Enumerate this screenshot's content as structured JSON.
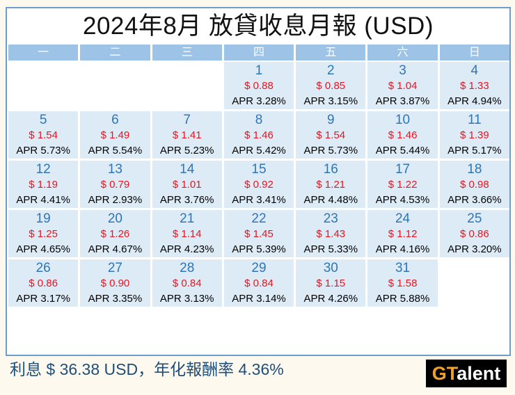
{
  "title": "2024年8月 放貸收息月報 (USD)",
  "weekdays": [
    "一",
    "二",
    "三",
    "四",
    "五",
    "六",
    "日"
  ],
  "leading_empty_cells": 3,
  "days": [
    {
      "day": "1",
      "amount": "$ 0.88",
      "apr": "APR 3.28%"
    },
    {
      "day": "2",
      "amount": "$ 0.85",
      "apr": "APR 3.15%"
    },
    {
      "day": "3",
      "amount": "$ 1.04",
      "apr": "APR 3.87%"
    },
    {
      "day": "4",
      "amount": "$ 1.33",
      "apr": "APR 4.94%"
    },
    {
      "day": "5",
      "amount": "$ 1.54",
      "apr": "APR 5.73%"
    },
    {
      "day": "6",
      "amount": "$ 1.49",
      "apr": "APR 5.54%"
    },
    {
      "day": "7",
      "amount": "$ 1.41",
      "apr": "APR 5.23%"
    },
    {
      "day": "8",
      "amount": "$ 1.46",
      "apr": "APR 5.42%"
    },
    {
      "day": "9",
      "amount": "$ 1.54",
      "apr": "APR 5.73%"
    },
    {
      "day": "10",
      "amount": "$ 1.46",
      "apr": "APR 5.44%"
    },
    {
      "day": "11",
      "amount": "$ 1.39",
      "apr": "APR 5.17%"
    },
    {
      "day": "12",
      "amount": "$ 1.19",
      "apr": "APR 4.41%"
    },
    {
      "day": "13",
      "amount": "$ 0.79",
      "apr": "APR 2.93%"
    },
    {
      "day": "14",
      "amount": "$ 1.01",
      "apr": "APR 3.76%"
    },
    {
      "day": "15",
      "amount": "$ 0.92",
      "apr": "APR 3.41%"
    },
    {
      "day": "16",
      "amount": "$ 1.21",
      "apr": "APR 4.48%"
    },
    {
      "day": "17",
      "amount": "$ 1.22",
      "apr": "APR 4.53%"
    },
    {
      "day": "18",
      "amount": "$ 0.98",
      "apr": "APR 3.66%"
    },
    {
      "day": "19",
      "amount": "$ 1.25",
      "apr": "APR 4.65%"
    },
    {
      "day": "20",
      "amount": "$ 1.26",
      "apr": "APR 4.67%"
    },
    {
      "day": "21",
      "amount": "$ 1.14",
      "apr": "APR 4.23%"
    },
    {
      "day": "22",
      "amount": "$ 1.45",
      "apr": "APR 5.39%"
    },
    {
      "day": "23",
      "amount": "$ 1.43",
      "apr": "APR 5.33%"
    },
    {
      "day": "24",
      "amount": "$ 1.12",
      "apr": "APR 4.16%"
    },
    {
      "day": "25",
      "amount": "$ 0.86",
      "apr": "APR 3.20%"
    },
    {
      "day": "26",
      "amount": "$ 0.86",
      "apr": "APR 3.17%"
    },
    {
      "day": "27",
      "amount": "$ 0.90",
      "apr": "APR 3.35%"
    },
    {
      "day": "28",
      "amount": "$ 0.84",
      "apr": "APR 3.13%"
    },
    {
      "day": "29",
      "amount": "$ 0.84",
      "apr": "APR 3.14%"
    },
    {
      "day": "30",
      "amount": "$ 1.15",
      "apr": "APR 4.26%"
    },
    {
      "day": "31",
      "amount": "$ 1.58",
      "apr": "APR 5.88%"
    }
  ],
  "footer": {
    "summary": "利息 $ 36.38 USD，年化報酬率 4.36%"
  },
  "logo": {
    "part1": "GT",
    "part2": "alent"
  },
  "colors": {
    "header": "#9DC3E6",
    "cell": "#DDEBF7",
    "day_number": "#2E75B6",
    "amount": "#E8141F",
    "border": "#6C9DCC",
    "logo_accent": "#F2A22C"
  }
}
